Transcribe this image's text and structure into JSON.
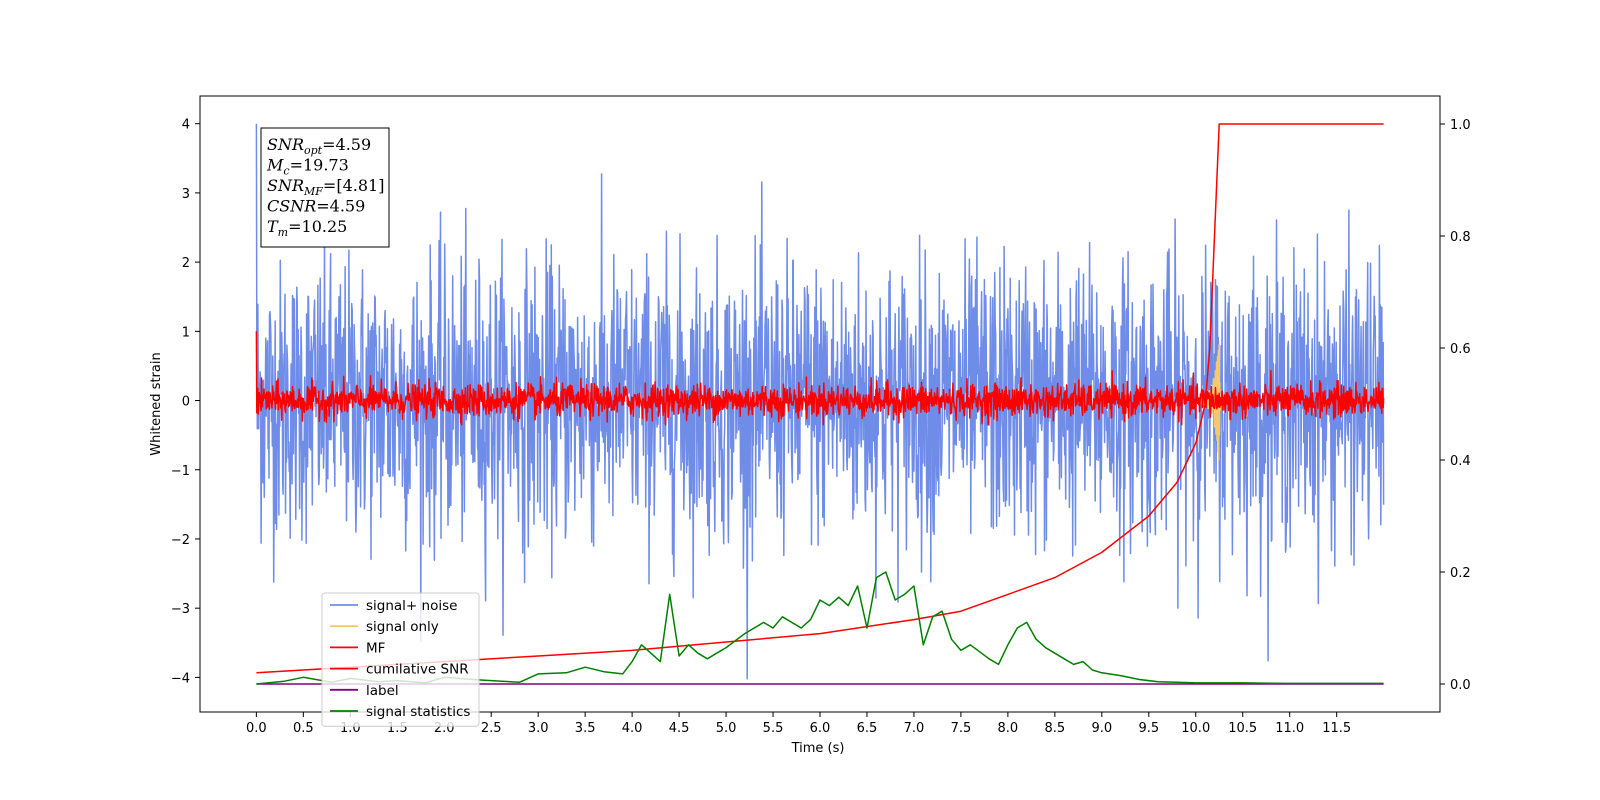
{
  "chart_data": {
    "type": "line",
    "xlabel": "Time (s)",
    "ylabel": "Whitened strain",
    "xlim": [
      -0.6,
      12.6
    ],
    "ylim": [
      -4.5,
      4.4
    ],
    "y2lim": [
      -0.05,
      1.05
    ],
    "x_ticks": [
      0.0,
      0.5,
      1.0,
      1.5,
      2.0,
      2.5,
      3.0,
      3.5,
      4.0,
      4.5,
      5.0,
      5.5,
      6.0,
      6.5,
      7.0,
      7.5,
      8.0,
      8.5,
      9.0,
      9.5,
      10.0,
      10.5,
      11.0,
      11.5
    ],
    "x_tick_labels": [
      "0.0",
      "0.5",
      "1.0",
      "1.5",
      "2.0",
      "2.5",
      "3.0",
      "3.5",
      "4.0",
      "4.5",
      "5.0",
      "5.5",
      "6.0",
      "6.5",
      "7.0",
      "7.5",
      "8.0",
      "8.5",
      "9.0",
      "9.5",
      "10.0",
      "10.5",
      "11.0",
      "11.5"
    ],
    "y_ticks": [
      -4,
      -3,
      -2,
      -1,
      0,
      1,
      2,
      3,
      4
    ],
    "y_tick_labels": [
      "−4",
      "−3",
      "−2",
      "−1",
      "0",
      "1",
      "2",
      "3",
      "4"
    ],
    "y2_ticks": [
      0.0,
      0.2,
      0.4,
      0.6,
      0.8,
      1.0
    ],
    "y2_tick_labels": [
      "0.0",
      "0.2",
      "0.4",
      "0.6",
      "0.8",
      "1.0"
    ],
    "legend_position": "lower-left",
    "series": [
      {
        "name": "signal+ noise",
        "color": "#6f8de8",
        "axis": "left",
        "kind": "noise",
        "x_range": [
          0,
          12
        ],
        "amplitude_sd": 1.0,
        "y_range": [
          -4.13,
          4.0
        ]
      },
      {
        "name": "signal only",
        "color": "#f5c96a",
        "axis": "left",
        "kind": "chirp",
        "peak_time": 10.25,
        "y_range": [
          -0.9,
          0.95
        ]
      },
      {
        "name": "MF",
        "color": "#ff0000",
        "axis": "left",
        "kind": "noise",
        "x_range": [
          0,
          12
        ],
        "amplitude_sd": 0.12,
        "y_range": [
          -0.35,
          1.0
        ]
      },
      {
        "name": "cumilative SNR",
        "color": "#ff0000",
        "axis": "right",
        "x": [
          0.0,
          1.0,
          2.0,
          3.0,
          4.0,
          5.0,
          6.0,
          7.0,
          7.5,
          8.0,
          8.5,
          9.0,
          9.5,
          9.8,
          10.0,
          10.1,
          10.15,
          10.2,
          10.25,
          12.0
        ],
        "y": [
          0.02,
          0.03,
          0.04,
          0.05,
          0.06,
          0.075,
          0.09,
          0.115,
          0.13,
          0.16,
          0.19,
          0.235,
          0.3,
          0.36,
          0.43,
          0.5,
          0.6,
          0.8,
          1.0,
          1.0
        ]
      },
      {
        "name": "label",
        "color": "#800080",
        "axis": "right",
        "x": [
          0.0,
          12.0
        ],
        "y": [
          0.0,
          0.0
        ]
      },
      {
        "name": "signal statistics",
        "color": "#008000",
        "axis": "right",
        "x": [
          0.0,
          0.3,
          0.5,
          0.8,
          1.0,
          1.3,
          1.5,
          1.8,
          2.0,
          2.3,
          2.5,
          2.8,
          3.0,
          3.3,
          3.5,
          3.7,
          3.9,
          4.0,
          4.1,
          4.2,
          4.3,
          4.4,
          4.5,
          4.6,
          4.7,
          4.8,
          4.9,
          5.0,
          5.2,
          5.4,
          5.5,
          5.6,
          5.8,
          5.9,
          6.0,
          6.1,
          6.2,
          6.3,
          6.4,
          6.5,
          6.6,
          6.7,
          6.8,
          6.9,
          7.0,
          7.1,
          7.2,
          7.3,
          7.4,
          7.5,
          7.6,
          7.8,
          7.9,
          8.0,
          8.1,
          8.2,
          8.3,
          8.4,
          8.5,
          8.6,
          8.7,
          8.8,
          8.9,
          9.0,
          9.2,
          9.4,
          9.6,
          9.8,
          10.0,
          10.5,
          11.0,
          12.0
        ],
        "y": [
          0.0,
          0.005,
          0.012,
          0.003,
          0.01,
          0.004,
          0.006,
          0.002,
          0.012,
          0.008,
          0.006,
          0.003,
          0.018,
          0.02,
          0.03,
          0.022,
          0.018,
          0.04,
          0.07,
          0.055,
          0.04,
          0.16,
          0.05,
          0.07,
          0.055,
          0.045,
          0.055,
          0.065,
          0.09,
          0.11,
          0.1,
          0.12,
          0.1,
          0.115,
          0.15,
          0.14,
          0.155,
          0.14,
          0.175,
          0.1,
          0.19,
          0.2,
          0.15,
          0.16,
          0.175,
          0.07,
          0.12,
          0.13,
          0.08,
          0.06,
          0.07,
          0.045,
          0.035,
          0.07,
          0.1,
          0.11,
          0.08,
          0.065,
          0.055,
          0.045,
          0.035,
          0.04,
          0.025,
          0.02,
          0.015,
          0.008,
          0.004,
          0.003,
          0.002,
          0.002,
          0.001,
          0.001
        ]
      }
    ],
    "annotations": [
      {
        "base": "SNR",
        "sub": "opt",
        "value": "=4.59"
      },
      {
        "base": "M",
        "sub": "c",
        "value": "=19.73"
      },
      {
        "base": "SNR",
        "sub": "MF",
        "value": "=[4.81]"
      },
      {
        "base": "CSNR",
        "sub": "",
        "value": "=4.59"
      },
      {
        "base": "T",
        "sub": "m",
        "value": "=10.25"
      }
    ]
  }
}
